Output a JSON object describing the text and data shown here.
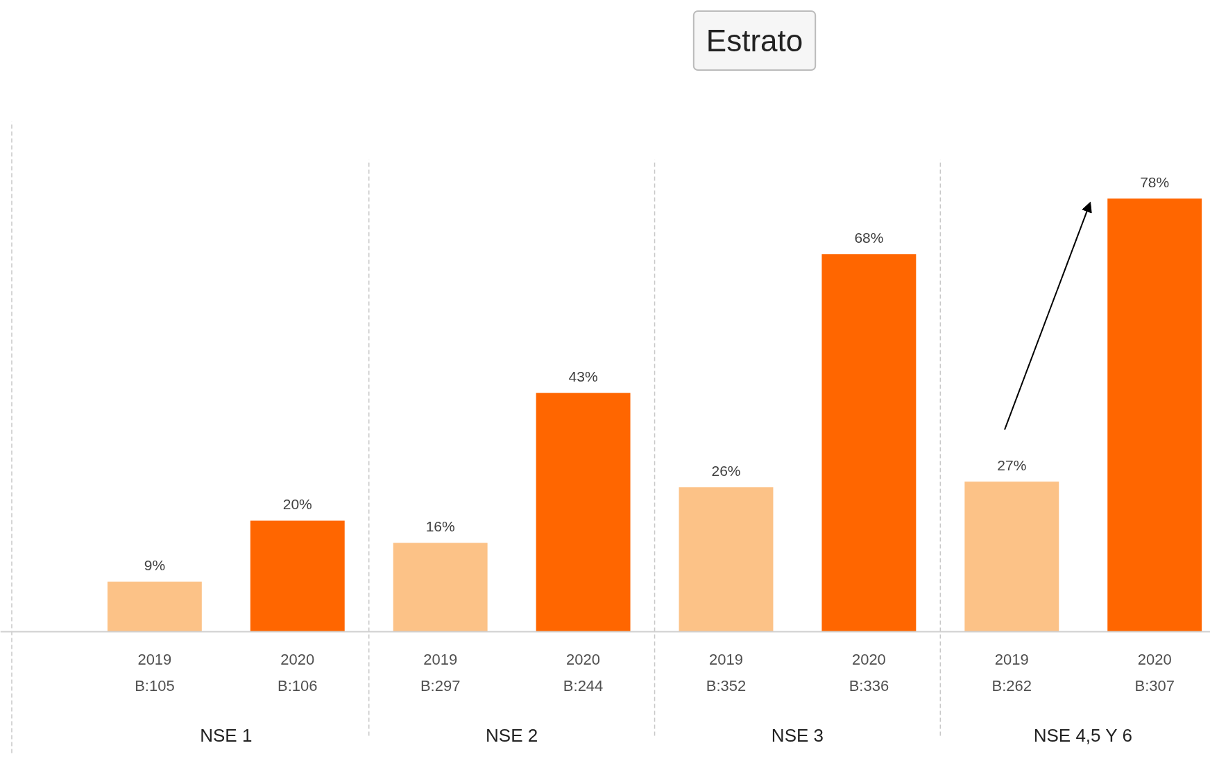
{
  "chart_data": {
    "type": "bar",
    "title": "Estrato",
    "categories": [
      "2019\nB:105",
      "2020\nB:106",
      "2019\nB:297",
      "2020\nB:244",
      "2019\nB:352",
      "2020\nB:336",
      "2019\nB:262",
      "2020\nB:307"
    ],
    "values": [
      9,
      20,
      16,
      43,
      26,
      68,
      27,
      78
    ],
    "colors": [
      "#fcc287",
      "#ff6600",
      "#fcc287",
      "#ff6600",
      "#fcc287",
      "#ff6600",
      "#fcc287",
      "#ff6600"
    ],
    "value_labels": [
      "9%",
      "20%",
      "16%",
      "43%",
      "26%",
      "68%",
      "27%",
      "78%"
    ],
    "annotations": [
      "NSE 1",
      "NSE 2",
      "NSE 3",
      "NSE 4,5 Y 6"
    ],
    "data_labels": true
  }
}
